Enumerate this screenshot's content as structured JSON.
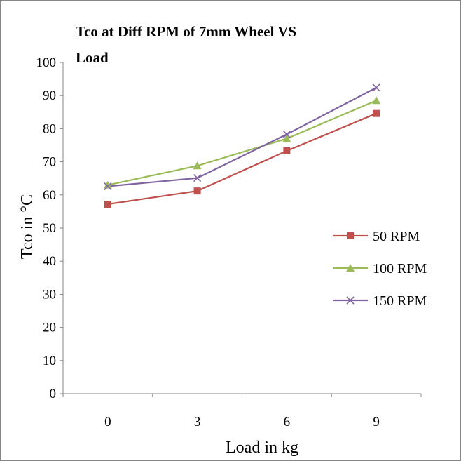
{
  "chart_data": {
    "type": "line",
    "title_lines": [
      "Tco at Diff RPM of 7mm Wheel VS",
      "Load"
    ],
    "xlabel": "Load in kg",
    "ylabel": "Tco in °C",
    "categories": [
      "0",
      "3",
      "6",
      "9"
    ],
    "ylim": [
      0,
      100
    ],
    "yticks": [
      0,
      10,
      20,
      30,
      40,
      50,
      60,
      70,
      80,
      90,
      100
    ],
    "grid": false,
    "legend_position": "right",
    "series": [
      {
        "name": "50 RPM",
        "color": "#C0504D",
        "marker": "square",
        "values": [
          57.2,
          61.2,
          73.3,
          84.6
        ]
      },
      {
        "name": "100 RPM",
        "color": "#9BBB59",
        "marker": "triangle",
        "values": [
          63.0,
          68.8,
          77.0,
          88.5
        ]
      },
      {
        "name": "150 RPM",
        "color": "#8064A2",
        "marker": "x",
        "values": [
          62.6,
          65.1,
          78.3,
          92.4
        ]
      }
    ]
  }
}
